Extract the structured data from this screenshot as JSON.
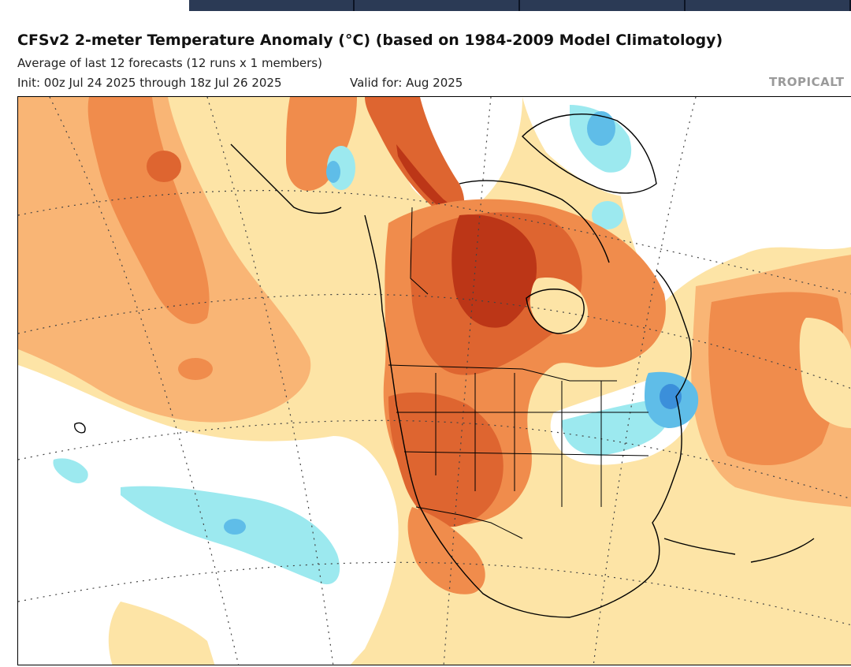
{
  "header": {
    "title": "CFSv2 2-meter Temperature Anomaly (°C) (based on 1984-2009 Model Climatology)",
    "subtitle": "Average of last 12 forecasts (12 runs x 1 members)",
    "init": "Init: 00z Jul 24 2025 through 18z Jul 26 2025",
    "valid": "Valid for: Aug 2025",
    "brand": "TROPICALT"
  },
  "nav": {
    "tabs": [
      "",
      "",
      "",
      ""
    ]
  },
  "map": {
    "region": "North America",
    "variable": "2-meter Temperature Anomaly",
    "colors": {
      "light_warm": "#fde4a6",
      "warm": "#f9b575",
      "orange": "#f08c4c",
      "red_orange": "#de6530",
      "dark_red": "#bc3617",
      "neutral": "#ffffff",
      "light_blue": "#9ce9ef",
      "blue": "#5fbde8",
      "dark_blue": "#3b8fda"
    }
  }
}
